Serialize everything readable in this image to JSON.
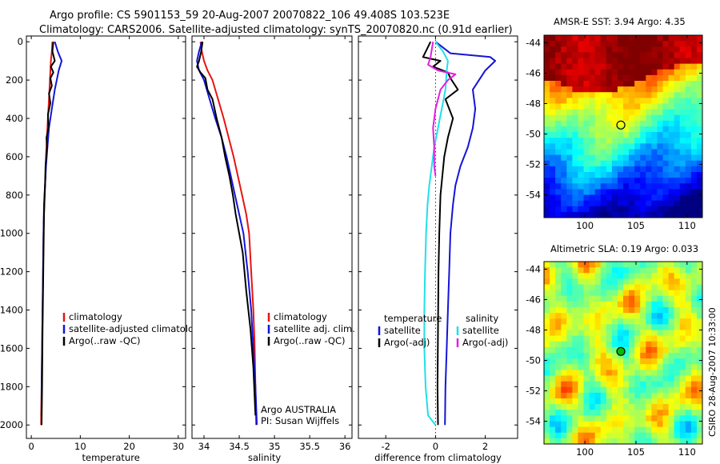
{
  "header": {
    "line1": "Argo profile: CS 5901153_59 20-Aug-2007 20070822_106 49.408S 103.523E",
    "line2": "Climatology: CARS2006. Satellite-adjusted climatology: synTS_20070820.nc (0.91d earlier)"
  },
  "credit": "CSIRO 28-Aug-2007 10:33:00",
  "colors": {
    "climatology": "#e8140f",
    "satellite": "#1414d8",
    "argo": "#000000",
    "sat_salinity": "#20e0e8",
    "argo_salinity": "#e020e0"
  },
  "chart_data": [
    {
      "type": "line",
      "id": "temperature",
      "xlabel": "temperature",
      "ylabel": "",
      "xlim": [
        -1,
        31.5
      ],
      "ylim": [
        2070,
        -30
      ],
      "xticks": [
        0,
        10,
        20,
        30
      ],
      "yticks": [
        0,
        200,
        400,
        600,
        800,
        1000,
        1200,
        1400,
        1600,
        1800,
        2000
      ],
      "legend": [
        "climatology",
        "satellite-adjusted climatology",
        "Argo(..raw -QC)"
      ],
      "series": [
        {
          "name": "climatology",
          "color": "climatology",
          "x": [
            4.3,
            4.2,
            4.0,
            3.8,
            3.6,
            3.4,
            3.2,
            3.0,
            2.9,
            2.7,
            2.6,
            2.5,
            2.4,
            2.3,
            2.2,
            2.1,
            2.0,
            2.0
          ],
          "y": [
            0,
            50,
            100,
            200,
            300,
            400,
            500,
            600,
            700,
            800,
            900,
            1000,
            1200,
            1400,
            1600,
            1800,
            1950,
            2000
          ]
        },
        {
          "name": "satellite-adjusted climatology",
          "color": "satellite",
          "x": [
            4.8,
            5.4,
            6.2,
            5.6,
            4.8,
            4.2,
            3.6,
            3.3,
            3.0,
            2.8,
            2.6,
            2.5,
            2.4,
            2.3,
            2.2,
            2.1,
            2.1
          ],
          "y": [
            0,
            50,
            100,
            150,
            250,
            350,
            450,
            550,
            650,
            750,
            850,
            1000,
            1200,
            1400,
            1600,
            1800,
            2000
          ]
        },
        {
          "name": "Argo(..raw -QC)",
          "color": "argo",
          "x": [
            4.5,
            4.3,
            4.8,
            4.0,
            4.5,
            3.9,
            4.2,
            3.6,
            3.9,
            3.4,
            3.5,
            3.1,
            3.2,
            2.9,
            2.8,
            2.6,
            2.5,
            2.4,
            2.3,
            2.2,
            2.1
          ],
          "y": [
            0,
            50,
            100,
            130,
            160,
            190,
            230,
            270,
            320,
            380,
            450,
            500,
            550,
            650,
            750,
            900,
            1100,
            1300,
            1500,
            1800,
            2000
          ]
        }
      ]
    },
    {
      "type": "line",
      "id": "salinity",
      "xlabel": "salinity",
      "ylabel": "",
      "xlim": [
        33.83,
        36.1
      ],
      "ylim": [
        2070,
        -30
      ],
      "xticks": [
        34,
        34.5,
        35,
        35.5,
        36
      ],
      "yticks": [
        0,
        200,
        400,
        600,
        800,
        1000,
        1200,
        1400,
        1600,
        1800,
        2000
      ],
      "legend": [
        "climatology",
        "satellite adj. clim.",
        "Argo(..raw -QC)"
      ],
      "annotations": [
        "Argo AUSTRALIA",
        "PI: Susan Wijffels"
      ],
      "series": [
        {
          "name": "climatology",
          "color": "climatology",
          "x": [
            33.95,
            33.97,
            34.0,
            34.05,
            34.12,
            34.2,
            34.28,
            34.35,
            34.42,
            34.48,
            34.54,
            34.6,
            34.64,
            34.67,
            34.7,
            34.72,
            34.73,
            34.74
          ],
          "y": [
            0,
            50,
            100,
            150,
            200,
            300,
            400,
            500,
            600,
            700,
            800,
            900,
            1000,
            1200,
            1400,
            1600,
            1800,
            2000
          ]
        },
        {
          "name": "satellite adj. clim.",
          "color": "satellite",
          "x": [
            33.97,
            33.93,
            33.9,
            33.93,
            34.0,
            34.08,
            34.16,
            34.25,
            34.32,
            34.38,
            34.44,
            34.5,
            34.56,
            34.62,
            34.67,
            34.7,
            34.73,
            34.75
          ],
          "y": [
            0,
            50,
            100,
            150,
            200,
            300,
            400,
            500,
            600,
            700,
            800,
            900,
            1000,
            1200,
            1400,
            1600,
            1800,
            2000
          ]
        },
        {
          "name": "Argo(..raw -QC)",
          "color": "argo",
          "x": [
            33.98,
            33.96,
            33.93,
            33.9,
            33.95,
            34.02,
            34.05,
            34.12,
            34.18,
            34.25,
            34.3,
            34.36,
            34.41,
            34.45,
            34.5,
            34.55,
            34.6,
            34.66,
            34.7,
            34.73
          ],
          "y": [
            0,
            50,
            100,
            130,
            160,
            190,
            250,
            300,
            400,
            500,
            600,
            700,
            800,
            900,
            1000,
            1100,
            1300,
            1500,
            1700,
            1950
          ]
        }
      ]
    },
    {
      "type": "line",
      "id": "difference",
      "xlabel": "difference from climatology",
      "ylabel": "",
      "xlim": [
        -3.1,
        3.3
      ],
      "ylim": [
        2070,
        -30
      ],
      "xticks": [
        -2,
        0,
        2
      ],
      "yticks": [
        0,
        200,
        400,
        600,
        800,
        1000,
        1200,
        1400,
        1600,
        1800,
        2000
      ],
      "legend_headers": [
        "temperature",
        "salinity"
      ],
      "legend_temperature": [
        "satellite",
        "Argo(-adj)"
      ],
      "legend_salinity": [
        "satellite",
        "Argo(-adj)"
      ],
      "series": [
        {
          "name": "satellite",
          "group": "temperature",
          "color": "satellite",
          "x": [
            0.0,
            0.6,
            2.2,
            2.4,
            2.0,
            1.5,
            1.6,
            1.5,
            1.3,
            1.0,
            0.8,
            0.7,
            0.6,
            0.55,
            0.5,
            0.45,
            0.4,
            0.38
          ],
          "y": [
            0,
            60,
            80,
            100,
            150,
            250,
            350,
            450,
            550,
            650,
            750,
            850,
            1000,
            1200,
            1400,
            1600,
            1800,
            2000
          ]
        },
        {
          "name": "Argo(-adj)",
          "group": "temperature",
          "color": "argo",
          "x": [
            -0.2,
            -0.5,
            0.2,
            -0.1,
            0.5,
            0.6,
            0.9,
            0.4,
            0.7,
            0.5,
            0.35,
            0.2,
            0.15,
            0.12,
            0.1,
            0.08,
            0.1
          ],
          "y": [
            0,
            80,
            100,
            130,
            160,
            190,
            250,
            300,
            400,
            500,
            600,
            800,
            1000,
            1200,
            1500,
            1800,
            2000
          ]
        },
        {
          "name": "satellite",
          "group": "salinity",
          "color": "sat_salinity",
          "x": [
            0.0,
            0.3,
            0.5,
            0.45,
            0.4,
            0.25,
            0.1,
            -0.05,
            -0.15,
            -0.25,
            -0.32,
            -0.38,
            -0.42,
            -0.45,
            -0.45,
            -0.4,
            -0.3,
            0.0
          ],
          "y": [
            0,
            50,
            100,
            150,
            250,
            350,
            450,
            550,
            650,
            750,
            850,
            1000,
            1200,
            1400,
            1600,
            1800,
            1950,
            2000
          ]
        },
        {
          "name": "Argo(-adj)",
          "group": "salinity",
          "color": "argo_salinity",
          "x": [
            -0.1,
            -0.2,
            -0.3,
            0.1,
            0.8,
            0.5,
            0.2,
            0.0,
            -0.1,
            -0.05,
            -0.05,
            0.0
          ],
          "y": [
            0,
            80,
            120,
            150,
            170,
            200,
            250,
            350,
            450,
            550,
            650,
            700
          ]
        }
      ]
    },
    {
      "type": "heatmap",
      "id": "sst_map",
      "title": "AMSR-E SST: 3.94 Argo: 4.35",
      "xlim": [
        96,
        111.5
      ],
      "ylim": [
        -55.5,
        -43.5
      ],
      "xticks": [
        100,
        105,
        110
      ],
      "yticks": [
        -44,
        -46,
        -48,
        -50,
        -52,
        -54
      ],
      "marker": {
        "lon": 103.52,
        "lat": -49.41
      }
    },
    {
      "type": "heatmap",
      "id": "sla_map",
      "title": "Altimetric SLA: 0.19 Argo: 0.033",
      "xlim": [
        96,
        111.5
      ],
      "ylim": [
        -55.5,
        -43.5
      ],
      "xticks": [
        100,
        105,
        110
      ],
      "yticks": [
        -44,
        -46,
        -48,
        -50,
        -52,
        -54
      ],
      "marker": {
        "lon": 103.52,
        "lat": -49.41
      }
    }
  ]
}
